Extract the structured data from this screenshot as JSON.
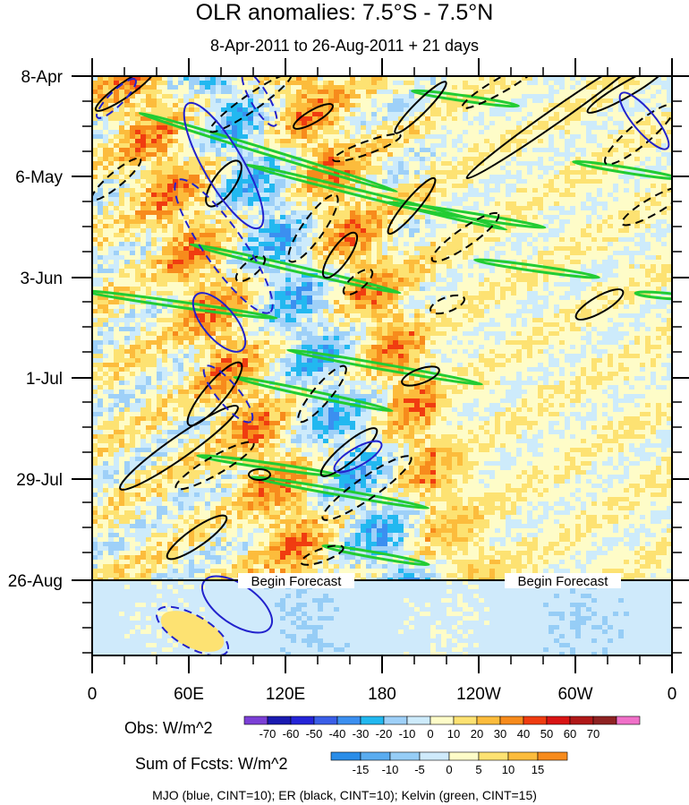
{
  "chart_data": {
    "type": "heatmap",
    "title": "OLR anomalies: 7.5°S - 7.5°N",
    "subtitle": "8-Apr-2011 to 26-Aug-2011 + 21 days",
    "x_ticks": [
      "0",
      "60E",
      "120E",
      "180",
      "120W",
      "60W",
      "0"
    ],
    "y_ticks": [
      "8-Apr",
      "6-May",
      "3-Jun",
      "1-Jul",
      "29-Jul",
      "26-Aug"
    ],
    "forecast_labels": [
      "Begin Forecast",
      "Begin Forecast"
    ],
    "obs_colorbar": {
      "label": "Obs: W/m^2",
      "levels": [
        "-70",
        "-60",
        "-50",
        "-40",
        "-30",
        "-20",
        "-10",
        "0",
        "10",
        "20",
        "30",
        "40",
        "50",
        "60",
        "70"
      ],
      "colors": [
        "#7b3fd6",
        "#1a1ab0",
        "#2424d8",
        "#3a5ee8",
        "#3b8ff0",
        "#22b8f0",
        "#9ed0f8",
        "#cdebfb",
        "#fefcc8",
        "#fde272",
        "#fcbc3c",
        "#f78b1c",
        "#f03c10",
        "#d91414",
        "#b01818",
        "#8e2222",
        "#f070c8"
      ]
    },
    "fcst_colorbar": {
      "label": "Sum of Fcsts: W/m^2",
      "levels": [
        "-15",
        "-10",
        "-5",
        "0",
        "5",
        "10",
        "15"
      ],
      "colors": [
        "#2a8de8",
        "#5aacf0",
        "#96cdf6",
        "#cfeafb",
        "#fefcc8",
        "#fde272",
        "#fcbc3c",
        "#f78b1c"
      ]
    },
    "footnote": "MJO (blue, CINT=10); ER (black, CINT=10); Kelvin (green, CINT=15)"
  }
}
